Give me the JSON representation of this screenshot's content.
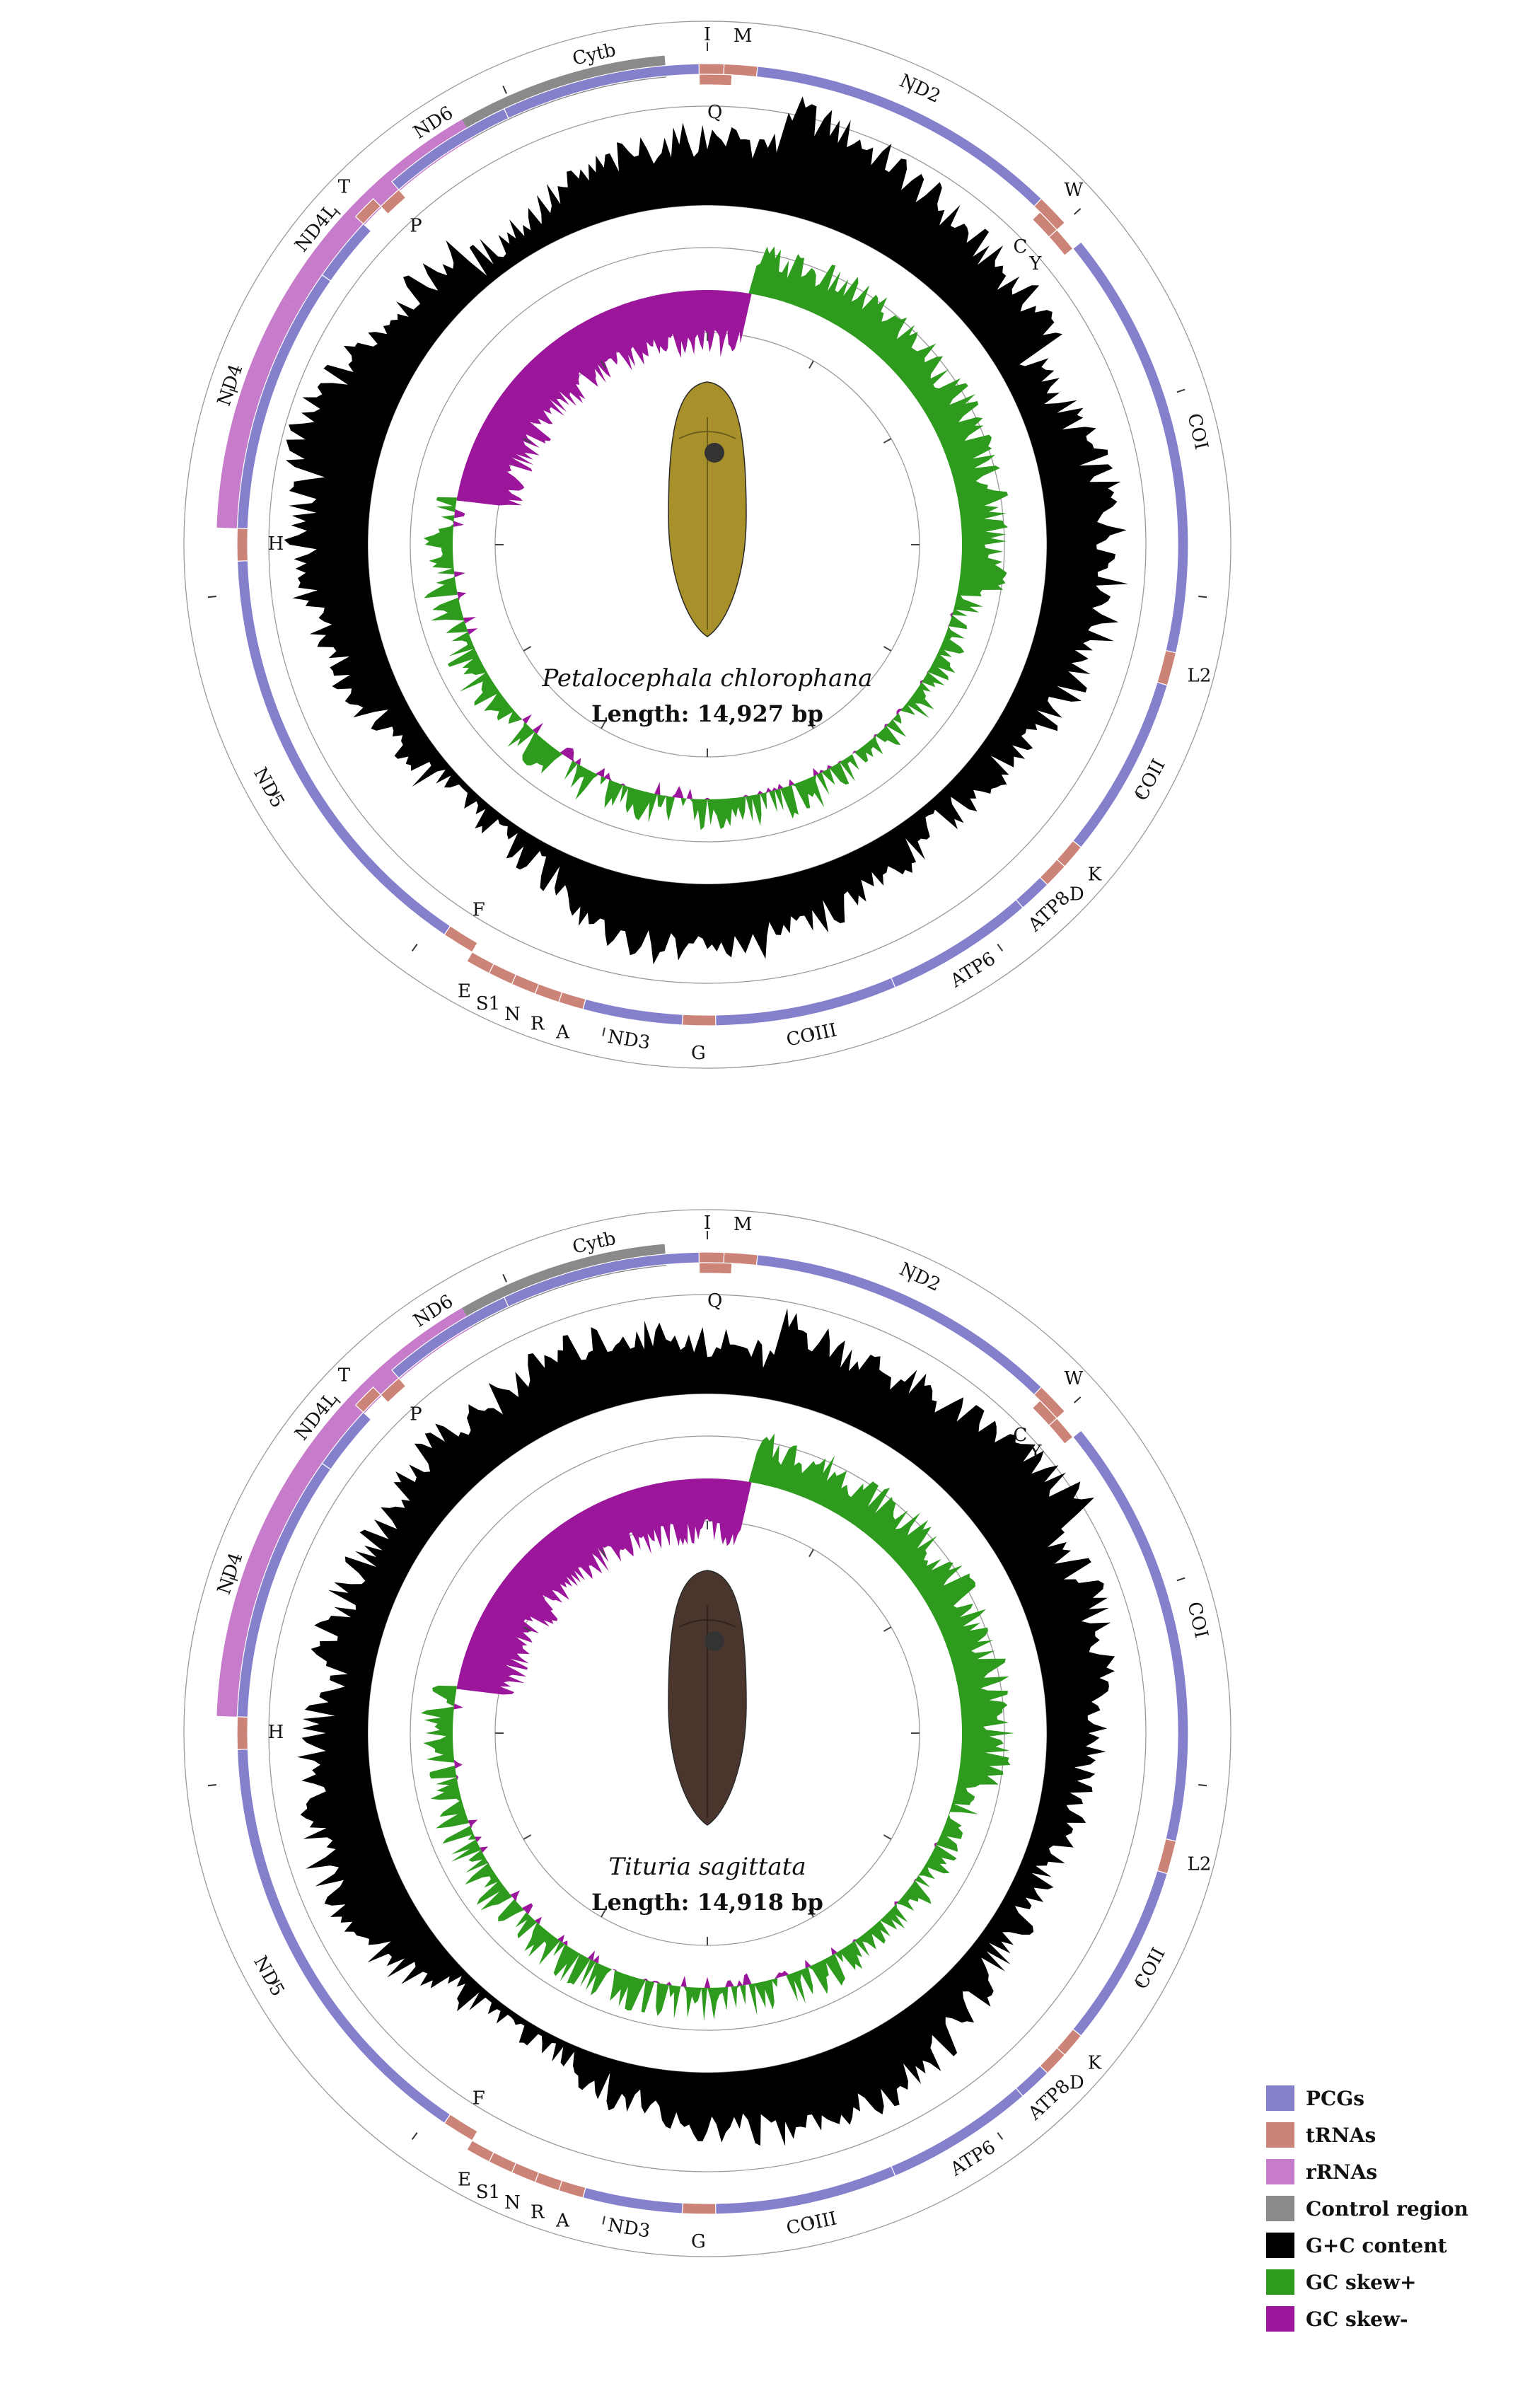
{
  "colors": {
    "PCG": "#8580CC",
    "tRNA": "#CC8378",
    "rRNA": "#C77BCB",
    "CR": "#8A8A8A",
    "gc_content": "#000000",
    "gc_skew_pos": "#2E9B1E",
    "gc_skew_neg": "#9B169B",
    "insect_1": "#A8902A",
    "insect_2": "#4A362C"
  },
  "legend": {
    "items": [
      {
        "label": "PCGs",
        "color": "#8580CC"
      },
      {
        "label": "tRNAs",
        "color": "#CC8378"
      },
      {
        "label": "rRNAs",
        "color": "#C77BCB"
      },
      {
        "label": "Control region",
        "color": "#8A8A8A"
      },
      {
        "label": "G+C content",
        "color": "#000000"
      },
      {
        "label": "GC skew+",
        "color": "#2E9B1E"
      },
      {
        "label": "GC skew-",
        "color": "#9B169B"
      }
    ]
  },
  "maps": [
    {
      "species": "Petalocephala chlorophana",
      "length_text": "Length:  14,927 bp",
      "insect_icon": "leafhopper-photo-yellow"
    },
    {
      "species": "Tituria sagittata",
      "length_text": "Length:  14,918 bp",
      "insect_icon": "leafhopper-photo-brown"
    }
  ],
  "genes": [
    {
      "name": "I",
      "type": "tRNA",
      "start": 358,
      "end": 2,
      "label": "I",
      "strand": "J"
    },
    {
      "name": "M",
      "type": "tRNA",
      "start": 2,
      "end": 6,
      "label": "M",
      "strand": "J"
    },
    {
      "name": "Q",
      "type": "tRNA",
      "start": 359,
      "end": 3,
      "label": "Q",
      "strand": "N"
    },
    {
      "name": "ND2",
      "type": "PCG",
      "start": 6,
      "end": 44,
      "label": "ND2",
      "strand": "J"
    },
    {
      "name": "W",
      "type": "tRNA",
      "start": 44,
      "end": 48,
      "label": "W",
      "strand": "J"
    },
    {
      "name": "C",
      "type": "tRNA",
      "start": 45,
      "end": 48,
      "label": "C",
      "strand": "N"
    },
    {
      "name": "Y",
      "type": "tRNA",
      "start": 48,
      "end": 51,
      "label": "Y",
      "strand": "N"
    },
    {
      "name": "COI",
      "type": "PCG",
      "start": 51,
      "end": 103,
      "label": "COI",
      "strand": "J"
    },
    {
      "name": "L2",
      "type": "tRNA",
      "start": 103,
      "end": 107,
      "label": "L2",
      "strand": "J"
    },
    {
      "name": "COII",
      "type": "PCG",
      "start": 107,
      "end": 129,
      "label": "COII",
      "strand": "J"
    },
    {
      "name": "K",
      "type": "tRNA",
      "start": 129,
      "end": 132,
      "label": "K",
      "strand": "J"
    },
    {
      "name": "D",
      "type": "tRNA",
      "start": 132,
      "end": 135,
      "label": "D",
      "strand": "J"
    },
    {
      "name": "ATP8",
      "type": "PCG",
      "start": 135,
      "end": 139,
      "label": "ATP8",
      "strand": "J"
    },
    {
      "name": "ATP6",
      "type": "PCG",
      "start": 139,
      "end": 157,
      "label": "ATP6",
      "strand": "J"
    },
    {
      "name": "COIII",
      "type": "PCG",
      "start": 157,
      "end": 179,
      "label": "COIII",
      "strand": "J"
    },
    {
      "name": "G",
      "type": "tRNA",
      "start": 179,
      "end": 183,
      "label": "G",
      "strand": "J"
    },
    {
      "name": "ND3",
      "type": "PCG",
      "start": 183,
      "end": 195,
      "label": "ND3",
      "strand": "J"
    },
    {
      "name": "A",
      "type": "tRNA",
      "start": 195,
      "end": 198,
      "label": "A",
      "strand": "J"
    },
    {
      "name": "R",
      "type": "tRNA",
      "start": 198,
      "end": 201,
      "label": "R",
      "strand": "J"
    },
    {
      "name": "N",
      "type": "tRNA",
      "start": 201,
      "end": 204,
      "label": "N",
      "strand": "J"
    },
    {
      "name": "S1",
      "type": "tRNA",
      "start": 204,
      "end": 207,
      "label": "S1",
      "strand": "J"
    },
    {
      "name": "E",
      "type": "tRNA",
      "start": 207,
      "end": 210,
      "label": "E",
      "strand": "J"
    },
    {
      "name": "F",
      "type": "tRNA",
      "start": 210,
      "end": 214,
      "label": "F",
      "strand": "N"
    },
    {
      "name": "ND5",
      "type": "PCG",
      "start": 214,
      "end": 268,
      "label": "ND5",
      "strand": "N"
    },
    {
      "name": "H",
      "type": "tRNA",
      "start": 268,
      "end": 272,
      "label": "H",
      "strand": "N"
    },
    {
      "name": "ND4",
      "type": "PCG",
      "start": 272,
      "end": 305,
      "label": "ND4",
      "strand": "N"
    },
    {
      "name": "ND4L",
      "type": "PCG",
      "start": 305,
      "end": 313,
      "label": "ND4L",
      "strand": "N"
    },
    {
      "name": "T",
      "type": "tRNA",
      "start": 313,
      "end": 316,
      "label": "T",
      "strand": "J"
    },
    {
      "name": "P",
      "type": "tRNA",
      "start": 316,
      "end": 319,
      "label": "P",
      "strand": "N"
    },
    {
      "name": "ND6",
      "type": "PCG",
      "start": 319,
      "end": 335,
      "label": "ND6",
      "strand": "J"
    },
    {
      "name": "Cytb",
      "type": "PCG",
      "start": 335,
      "end": 359,
      "label": "Cytb",
      "strand": "J"
    }
  ]
}
